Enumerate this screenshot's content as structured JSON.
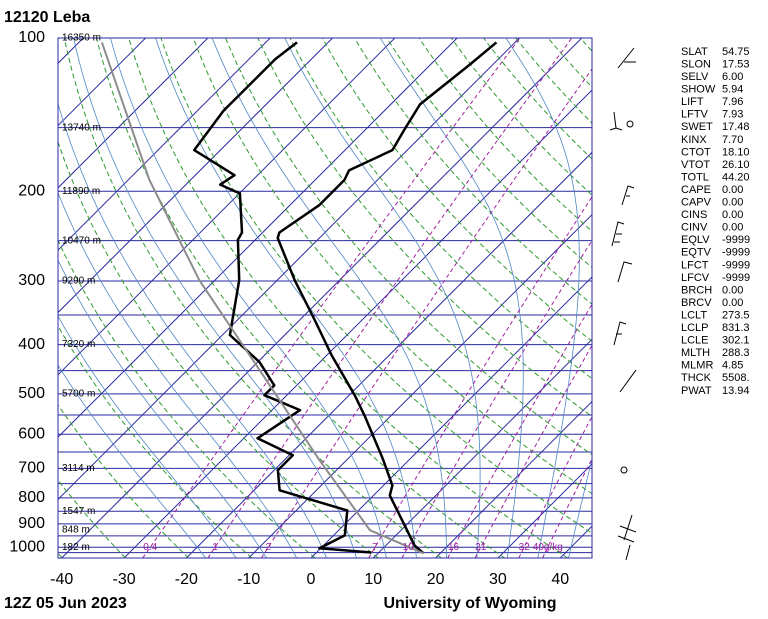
{
  "chart_data": {
    "type": "skewt",
    "title": "12120  Leba",
    "date": "12Z 05 Jun 2023",
    "source": "University of Wyoming",
    "xlim": [
      -40.6,
      45.1
    ],
    "xticks": [
      -40,
      -30,
      -20,
      -10,
      0,
      10,
      20,
      30,
      40
    ],
    "ylim": [
      1050,
      100
    ],
    "yticks": [
      100,
      200,
      300,
      400,
      500,
      600,
      700,
      800,
      900,
      1000
    ],
    "log_y": true,
    "grid": true,
    "series": [
      {
        "color": "#000000",
        "x": [
          17.3,
          14.6,
          9.8,
          2.6,
          1.4,
          -4.5,
          -14.3,
          -19.1,
          -29.2,
          -37.6,
          -47.2,
          -56.7,
          -57.3,
          -55.3,
          -55.3,
          -56.1,
          -52.4,
          -53.7,
          -55.3,
          -53.7,
          -53.0
        ],
        "y": [
          1028,
          992,
          906,
          791,
          756,
          669,
          551,
          503,
          420,
          358,
          299,
          247,
          241,
          213,
          190,
          182,
          166,
          152,
          135,
          113,
          102
        ]
      },
      {
        "color": "#000000",
        "x": [
          8.8,
          -0.2,
          1.8,
          -1.8,
          -15.9,
          -19.4,
          -19.4,
          -27.8,
          -25.5,
          -33.6,
          -33.6,
          -39.7,
          -48.8,
          -56.1,
          -62.8,
          -63.3,
          -69.9,
          -74.5,
          -73.7,
          -84.2,
          -85.8,
          -85.8,
          -85.0
        ],
        "y": [
          1024,
          1005,
          948,
          847,
          773,
          706,
          660,
          611,
          538,
          503,
          481,
          433,
          383,
          299,
          249,
          241,
          202,
          194,
          186,
          166,
          139,
          110,
          102
        ]
      },
      {
        "color": "#8c8c8c",
        "x": [
          17.3,
          5.0,
          -14.3,
          -38.4,
          -62.5,
          -86.6,
          -116.3
        ],
        "y": [
          1028,
          926,
          675,
          449,
          299,
          190,
          102
        ]
      }
    ],
    "height_labels": [
      {
        "value": 100,
        "label": "16350 m"
      },
      {
        "value": 150,
        "label": "13740 m"
      },
      {
        "value": 200,
        "label": "11890 m"
      },
      {
        "value": 250,
        "label": "10470 m"
      },
      {
        "value": 300,
        "label": "9290 m"
      },
      {
        "value": 400,
        "label": "7320 m"
      },
      {
        "value": 500,
        "label": "5700 m"
      },
      {
        "value": 700,
        "label": "3114 m"
      },
      {
        "value": 850,
        "label": "1547 m"
      },
      {
        "value": 925,
        "label": "848 m"
      },
      {
        "value": 1000,
        "label": "182 m"
      }
    ],
    "mixing_ratios": [
      0.4,
      1,
      2,
      7,
      10,
      16,
      21,
      32,
      {
        "value": 40,
        "label": "40g/kg"
      }
    ]
  },
  "indices": [
    [
      "SLAT",
      "54.75"
    ],
    [
      "SLON",
      "17.53"
    ],
    [
      "SELV",
      "6.00"
    ],
    [
      "SHOW",
      "5.94"
    ],
    [
      "LIFT",
      "7.96"
    ],
    [
      "LFTV",
      "7.93"
    ],
    [
      "SWET",
      "17.48"
    ],
    [
      "KINX",
      "7.70"
    ],
    [
      "CTOT",
      "18.10"
    ],
    [
      "VTOT",
      "26.10"
    ],
    [
      "TOTL",
      "44.20"
    ],
    [
      "CAPE",
      "0.00"
    ],
    [
      "CAPV",
      "0.00"
    ],
    [
      "CINS",
      "0.00"
    ],
    [
      "CINV",
      "0.00"
    ],
    [
      "EQLV",
      "-9999"
    ],
    [
      "EQTV",
      "-9999"
    ],
    [
      "LFCT",
      "-9999"
    ],
    [
      "LFCV",
      "-9999"
    ],
    [
      "BRCH",
      "0.00"
    ],
    [
      "BRCV",
      "0.00"
    ],
    [
      "LCLT",
      "273.5"
    ],
    [
      "LCLP",
      "831.3"
    ],
    [
      "LCLE",
      "302.1"
    ],
    [
      "MLTH",
      "288.3"
    ],
    [
      "MLMR",
      "4.85"
    ],
    [
      "THCK",
      "5508."
    ],
    [
      "PWAT",
      "13.94"
    ]
  ]
}
